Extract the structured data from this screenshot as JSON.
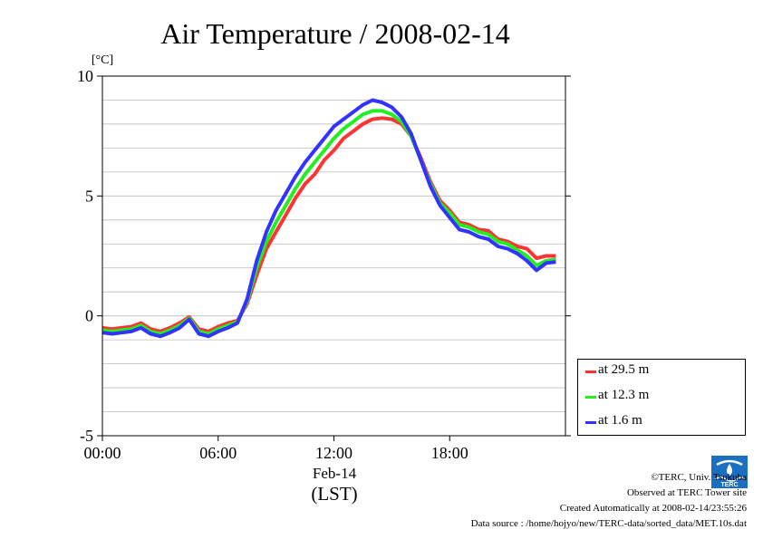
{
  "chart_data": {
    "type": "line",
    "title": "Air Temperature / 2008-02-14",
    "ylabel": "[°C]",
    "xlabel": "(LST)",
    "date_label": "Feb-14",
    "x_ticks": [
      "00:00",
      "06:00",
      "12:00",
      "18:00"
    ],
    "y_ticks": [
      "10",
      "5",
      "0",
      "-5"
    ],
    "ylim": [
      -5,
      10
    ],
    "xlim": [
      0,
      24
    ],
    "grid": true,
    "legend_position": "bottom-right outside",
    "series": [
      {
        "name": "at 29.5 m",
        "color": "#ff3333",
        "x": [
          0,
          0.5,
          1,
          1.5,
          2,
          2.5,
          3,
          3.5,
          4,
          4.5,
          5,
          5.5,
          6,
          6.5,
          7,
          7.5,
          8,
          8.5,
          9,
          9.5,
          10,
          10.5,
          11,
          11.5,
          12,
          12.5,
          13,
          13.5,
          14,
          14.5,
          15,
          15.5,
          16,
          16.5,
          17,
          17.5,
          18,
          18.5,
          19,
          19.5,
          20,
          20.5,
          21,
          21.5,
          22,
          22.5,
          23,
          23.5
        ],
        "y": [
          -0.5,
          -0.55,
          -0.5,
          -0.45,
          -0.3,
          -0.55,
          -0.65,
          -0.5,
          -0.3,
          -0.05,
          -0.55,
          -0.65,
          -0.45,
          -0.3,
          -0.2,
          0.5,
          1.7,
          2.8,
          3.5,
          4.2,
          4.9,
          5.5,
          5.9,
          6.5,
          6.9,
          7.4,
          7.7,
          8.0,
          8.2,
          8.25,
          8.2,
          8.0,
          7.5,
          6.6,
          5.6,
          4.8,
          4.4,
          3.9,
          3.8,
          3.6,
          3.55,
          3.2,
          3.1,
          2.9,
          2.8,
          2.4,
          2.5,
          2.5
        ]
      },
      {
        "name": "at 12.3 m",
        "color": "#22ee22",
        "x": [
          0,
          0.5,
          1,
          1.5,
          2,
          2.5,
          3,
          3.5,
          4,
          4.5,
          5,
          5.5,
          6,
          6.5,
          7,
          7.5,
          8,
          8.5,
          9,
          9.5,
          10,
          10.5,
          11,
          11.5,
          12,
          12.5,
          13,
          13.5,
          14,
          14.5,
          15,
          15.5,
          16,
          16.5,
          17,
          17.5,
          18,
          18.5,
          19,
          19.5,
          20,
          20.5,
          21,
          21.5,
          22,
          22.5,
          23,
          23.5
        ],
        "y": [
          -0.6,
          -0.65,
          -0.6,
          -0.55,
          -0.4,
          -0.65,
          -0.75,
          -0.6,
          -0.4,
          -0.1,
          -0.65,
          -0.75,
          -0.55,
          -0.4,
          -0.25,
          0.6,
          2.0,
          3.1,
          3.9,
          4.6,
          5.3,
          5.9,
          6.4,
          6.9,
          7.4,
          7.8,
          8.1,
          8.4,
          8.55,
          8.55,
          8.4,
          8.1,
          7.5,
          6.5,
          5.5,
          4.7,
          4.3,
          3.8,
          3.7,
          3.5,
          3.4,
          3.1,
          3.0,
          2.75,
          2.5,
          2.1,
          2.3,
          2.35
        ]
      },
      {
        "name": "at 1.6 m",
        "color": "#3333ff",
        "x": [
          0,
          0.5,
          1,
          1.5,
          2,
          2.5,
          3,
          3.5,
          4,
          4.5,
          5,
          5.5,
          6,
          6.5,
          7,
          7.5,
          8,
          8.5,
          9,
          9.5,
          10,
          10.5,
          11,
          11.5,
          12,
          12.5,
          13,
          13.5,
          14,
          14.5,
          15,
          15.5,
          16,
          16.5,
          17,
          17.5,
          18,
          18.5,
          19,
          19.5,
          20,
          20.5,
          21,
          21.5,
          22,
          22.5,
          23,
          23.5
        ],
        "y": [
          -0.7,
          -0.75,
          -0.7,
          -0.65,
          -0.5,
          -0.75,
          -0.85,
          -0.7,
          -0.5,
          -0.15,
          -0.75,
          -0.85,
          -0.65,
          -0.5,
          -0.3,
          0.7,
          2.3,
          3.5,
          4.4,
          5.1,
          5.8,
          6.4,
          6.9,
          7.4,
          7.9,
          8.2,
          8.5,
          8.8,
          9.0,
          8.9,
          8.7,
          8.3,
          7.6,
          6.5,
          5.4,
          4.6,
          4.1,
          3.6,
          3.5,
          3.3,
          3.2,
          2.9,
          2.8,
          2.6,
          2.3,
          1.9,
          2.2,
          2.25
        ]
      }
    ]
  },
  "credits": {
    "copyright": "©TERC, Univ. Tsukuba",
    "observed": "Observed at TERC Tower site",
    "created": "Created Automatically at 2008-02-14/23:55:26",
    "source": "Data source : /home/hojyo/new/TERC-data/sorted_data/MET.10s.dat"
  },
  "logo": {
    "text": "TERC",
    "color": "#1a6fc0"
  }
}
